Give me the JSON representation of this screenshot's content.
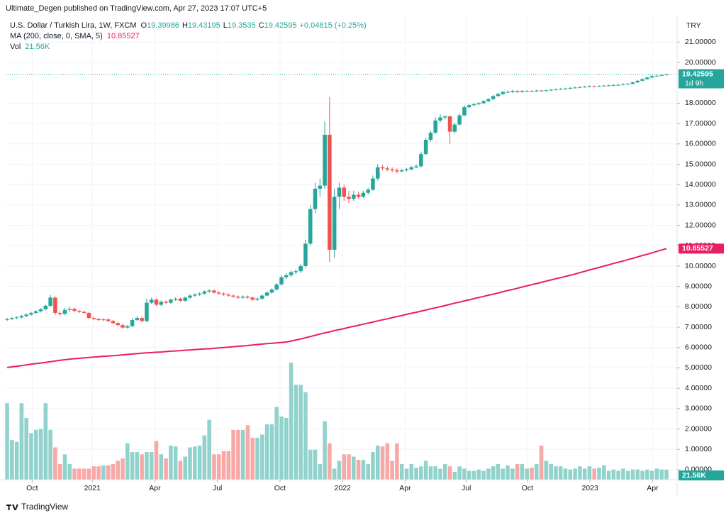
{
  "chart_data": {
    "type": "candlestick",
    "published": "Ultimate_Degen published on TradingView.com, Apr 27, 2023 17:07 UTC+5",
    "title": "U.S. Dollar / Turkish Lira, 1W, FXCM",
    "ohlc_labels": [
      "O",
      "H",
      "L",
      "C"
    ],
    "change": "+0.04815 (+0.25%)",
    "currency": "TRY",
    "countdown": "1d 9h",
    "brand": "TradingView",
    "up_color": "#26a69a",
    "down_color": "#ef5350",
    "candles": [
      [
        7.36,
        7.46,
        7.3,
        7.4
      ],
      [
        7.4,
        7.51,
        7.34,
        7.45
      ],
      [
        7.45,
        7.54,
        7.39,
        7.48
      ],
      [
        7.48,
        7.61,
        7.42,
        7.55
      ],
      [
        7.55,
        7.68,
        7.49,
        7.62
      ],
      [
        7.62,
        7.76,
        7.56,
        7.7
      ],
      [
        7.7,
        7.84,
        7.64,
        7.78
      ],
      [
        7.78,
        7.94,
        7.72,
        7.88
      ],
      [
        7.88,
        8.11,
        7.82,
        8.05
      ],
      [
        8.05,
        8.58,
        7.99,
        8.45
      ],
      [
        8.45,
        8.51,
        7.6,
        7.7
      ],
      [
        7.7,
        7.8,
        7.55,
        7.65
      ],
      [
        7.65,
        7.95,
        7.59,
        7.85
      ],
      [
        7.85,
        8.0,
        7.75,
        7.9
      ],
      [
        7.9,
        7.96,
        7.74,
        7.8
      ],
      [
        7.8,
        7.86,
        7.69,
        7.75
      ],
      [
        7.75,
        7.81,
        7.64,
        7.7
      ],
      [
        7.7,
        7.76,
        7.39,
        7.45
      ],
      [
        7.45,
        7.51,
        7.34,
        7.4
      ],
      [
        7.4,
        7.46,
        7.29,
        7.35
      ],
      [
        7.35,
        7.44,
        7.29,
        7.38
      ],
      [
        7.38,
        7.44,
        7.24,
        7.3
      ],
      [
        7.3,
        7.36,
        7.14,
        7.2
      ],
      [
        7.2,
        7.26,
        7.04,
        7.1
      ],
      [
        7.1,
        7.16,
        6.92,
        6.98
      ],
      [
        6.98,
        7.11,
        6.92,
        7.05
      ],
      [
        7.05,
        7.45,
        6.99,
        7.35
      ],
      [
        7.35,
        7.55,
        7.29,
        7.45
      ],
      [
        7.45,
        7.51,
        7.24,
        7.3
      ],
      [
        7.3,
        8.4,
        7.24,
        8.2
      ],
      [
        8.2,
        8.45,
        8.14,
        8.35
      ],
      [
        8.35,
        8.41,
        8.04,
        8.1
      ],
      [
        8.1,
        8.31,
        8.04,
        8.25
      ],
      [
        8.25,
        8.31,
        8.14,
        8.2
      ],
      [
        8.2,
        8.41,
        8.14,
        8.35
      ],
      [
        8.35,
        8.46,
        8.29,
        8.4
      ],
      [
        8.4,
        8.46,
        8.24,
        8.3
      ],
      [
        8.3,
        8.51,
        8.24,
        8.45
      ],
      [
        8.45,
        8.61,
        8.39,
        8.55
      ],
      [
        8.55,
        8.66,
        8.49,
        8.6
      ],
      [
        8.6,
        8.71,
        8.54,
        8.65
      ],
      [
        8.65,
        8.81,
        8.59,
        8.75
      ],
      [
        8.75,
        8.86,
        8.69,
        8.8
      ],
      [
        8.8,
        8.86,
        8.64,
        8.7
      ],
      [
        8.7,
        8.76,
        8.59,
        8.65
      ],
      [
        8.65,
        8.71,
        8.54,
        8.6
      ],
      [
        8.6,
        8.66,
        8.49,
        8.55
      ],
      [
        8.55,
        8.61,
        8.44,
        8.5
      ],
      [
        8.5,
        8.56,
        8.39,
        8.45
      ],
      [
        8.45,
        8.56,
        8.39,
        8.5
      ],
      [
        8.5,
        8.56,
        8.39,
        8.45
      ],
      [
        8.45,
        8.51,
        8.29,
        8.35
      ],
      [
        8.35,
        8.46,
        8.29,
        8.4
      ],
      [
        8.4,
        8.61,
        8.34,
        8.55
      ],
      [
        8.55,
        8.76,
        8.49,
        8.7
      ],
      [
        8.7,
        8.91,
        8.64,
        8.85
      ],
      [
        8.85,
        9.16,
        8.79,
        9.1
      ],
      [
        9.1,
        9.55,
        9.04,
        9.45
      ],
      [
        9.45,
        9.65,
        9.35,
        9.55
      ],
      [
        9.55,
        9.8,
        9.45,
        9.7
      ],
      [
        9.7,
        9.85,
        9.6,
        9.75
      ],
      [
        9.75,
        10.1,
        9.65,
        10.0
      ],
      [
        10.0,
        11.3,
        9.9,
        11.1
      ],
      [
        11.1,
        13.0,
        11.0,
        12.8
      ],
      [
        12.8,
        14.1,
        12.6,
        13.8
      ],
      [
        13.8,
        14.3,
        13.4,
        13.95
      ],
      [
        13.95,
        17.1,
        13.8,
        16.45
      ],
      [
        16.45,
        18.3,
        10.2,
        10.8
      ],
      [
        10.8,
        13.8,
        10.4,
        13.4
      ],
      [
        13.4,
        14.1,
        12.8,
        13.85
      ],
      [
        13.85,
        14.0,
        13.2,
        13.4
      ],
      [
        13.4,
        13.7,
        13.1,
        13.3
      ],
      [
        13.3,
        13.7,
        13.2,
        13.5
      ],
      [
        13.5,
        13.65,
        13.3,
        13.4
      ],
      [
        13.4,
        13.7,
        13.35,
        13.6
      ],
      [
        13.6,
        13.85,
        13.5,
        13.75
      ],
      [
        13.75,
        14.45,
        13.7,
        14.3
      ],
      [
        14.3,
        15.0,
        14.2,
        14.85
      ],
      [
        14.85,
        14.95,
        14.7,
        14.8
      ],
      [
        14.8,
        14.9,
        14.65,
        14.75
      ],
      [
        14.75,
        14.85,
        14.6,
        14.7
      ],
      [
        14.7,
        14.8,
        14.55,
        14.65
      ],
      [
        14.65,
        14.78,
        14.6,
        14.7
      ],
      [
        14.7,
        14.82,
        14.65,
        14.75
      ],
      [
        14.75,
        14.92,
        14.7,
        14.85
      ],
      [
        14.85,
        15.0,
        14.8,
        14.9
      ],
      [
        14.9,
        15.6,
        14.85,
        15.5
      ],
      [
        15.5,
        16.3,
        15.45,
        16.2
      ],
      [
        16.2,
        16.65,
        16.1,
        16.55
      ],
      [
        16.55,
        17.3,
        16.5,
        17.15
      ],
      [
        17.15,
        17.45,
        17.05,
        17.3
      ],
      [
        17.3,
        17.4,
        17.2,
        17.35
      ],
      [
        17.35,
        17.4,
        16.0,
        16.6
      ],
      [
        16.6,
        17.05,
        16.5,
        16.95
      ],
      [
        16.95,
        17.5,
        16.9,
        17.4
      ],
      [
        17.4,
        17.9,
        17.35,
        17.8
      ],
      [
        17.8,
        17.98,
        17.75,
        17.9
      ],
      [
        17.9,
        18.02,
        17.85,
        17.95
      ],
      [
        17.95,
        18.06,
        17.9,
        18.0
      ],
      [
        18.0,
        18.15,
        17.95,
        18.1
      ],
      [
        18.1,
        18.25,
        18.05,
        18.2
      ],
      [
        18.2,
        18.4,
        18.15,
        18.35
      ],
      [
        18.35,
        18.5,
        18.3,
        18.45
      ],
      [
        18.45,
        18.6,
        18.4,
        18.55
      ],
      [
        18.55,
        18.62,
        18.5,
        18.55
      ],
      [
        18.55,
        18.65,
        18.5,
        18.6
      ],
      [
        18.6,
        18.64,
        18.5,
        18.55
      ],
      [
        18.55,
        18.65,
        18.52,
        18.6
      ],
      [
        18.6,
        18.64,
        18.55,
        18.6
      ],
      [
        18.6,
        18.63,
        18.54,
        18.58
      ],
      [
        18.58,
        18.66,
        18.55,
        18.62
      ],
      [
        18.62,
        18.65,
        18.56,
        18.6
      ],
      [
        18.6,
        18.67,
        18.57,
        18.63
      ],
      [
        18.63,
        18.7,
        18.6,
        18.66
      ],
      [
        18.66,
        18.72,
        18.63,
        18.68
      ],
      [
        18.68,
        18.74,
        18.65,
        18.7
      ],
      [
        18.7,
        18.76,
        18.67,
        18.72
      ],
      [
        18.72,
        18.79,
        18.69,
        18.75
      ],
      [
        18.75,
        18.81,
        18.72,
        18.77
      ],
      [
        18.77,
        18.83,
        18.74,
        18.79
      ],
      [
        18.79,
        18.85,
        18.76,
        18.81
      ],
      [
        18.81,
        18.87,
        18.78,
        18.83
      ],
      [
        18.83,
        18.86,
        18.78,
        18.82
      ],
      [
        18.82,
        18.88,
        18.79,
        18.84
      ],
      [
        18.84,
        18.9,
        18.81,
        18.86
      ],
      [
        18.86,
        18.91,
        18.83,
        18.87
      ],
      [
        18.87,
        18.93,
        18.84,
        18.89
      ],
      [
        18.89,
        18.94,
        18.86,
        18.9
      ],
      [
        18.9,
        18.97,
        18.87,
        18.93
      ],
      [
        18.93,
        18.99,
        18.9,
        18.95
      ],
      [
        18.95,
        19.06,
        18.92,
        19.02
      ],
      [
        19.02,
        19.14,
        18.99,
        19.1
      ],
      [
        19.1,
        19.22,
        19.07,
        19.18
      ],
      [
        19.18,
        19.3,
        19.15,
        19.26
      ],
      [
        19.26,
        19.37,
        19.23,
        19.33
      ],
      [
        19.33,
        19.39,
        19.3,
        19.35
      ],
      [
        19.35,
        19.41,
        19.32,
        19.3778
      ],
      [
        19.39986,
        19.43195,
        19.3535,
        19.42595
      ]
    ],
    "ma": {
      "name": "MA (200, close, 0, SMA, 5)",
      "color": "#e91e63",
      "values": [
        5.02,
        5.05,
        5.08,
        5.11,
        5.15,
        5.18,
        5.21,
        5.24,
        5.27,
        5.3,
        5.34,
        5.37,
        5.4,
        5.43,
        5.45,
        5.47,
        5.49,
        5.51,
        5.53,
        5.55,
        5.57,
        5.58,
        5.6,
        5.62,
        5.64,
        5.66,
        5.68,
        5.7,
        5.72,
        5.74,
        5.75,
        5.77,
        5.78,
        5.8,
        5.82,
        5.83,
        5.85,
        5.87,
        5.88,
        5.9,
        5.91,
        5.93,
        5.94,
        5.96,
        5.98,
        6.0,
        6.02,
        6.04,
        6.06,
        6.08,
        6.1,
        6.12,
        6.15,
        6.17,
        6.19,
        6.21,
        6.23,
        6.25,
        6.27,
        6.32,
        6.37,
        6.42,
        6.48,
        6.54,
        6.6,
        6.66,
        6.72,
        6.77,
        6.83,
        6.88,
        6.93,
        6.99,
        7.04,
        7.09,
        7.15,
        7.2,
        7.25,
        7.31,
        7.36,
        7.41,
        7.47,
        7.52,
        7.57,
        7.63,
        7.68,
        7.73,
        7.79,
        7.84,
        7.9,
        7.95,
        8.01,
        8.06,
        8.12,
        8.18,
        8.23,
        8.29,
        8.34,
        8.4,
        8.46,
        8.51,
        8.57,
        8.62,
        8.68,
        8.74,
        8.8,
        8.85,
        8.91,
        8.97,
        9.03,
        9.09,
        9.14,
        9.2,
        9.26,
        9.32,
        9.38,
        9.43,
        9.49,
        9.55,
        9.61,
        9.68,
        9.74,
        9.81,
        9.87,
        9.93,
        10.0,
        10.06,
        10.13,
        10.19,
        10.25,
        10.32,
        10.38,
        10.45,
        10.52,
        10.58,
        10.65,
        10.72,
        10.79,
        10.85527
      ]
    },
    "volume": {
      "name": "Vol",
      "up_color": "#92d2cc",
      "down_color": "#f7a9a7",
      "last_label": "21.56K",
      "values": [
        166,
        86,
        82,
        166,
        134,
        101,
        108,
        110,
        166,
        108,
        70,
        34,
        55,
        34,
        24,
        24,
        24,
        24,
        29,
        29,
        31,
        31,
        34,
        41,
        46,
        79,
        60,
        60,
        55,
        60,
        60,
        84,
        55,
        46,
        74,
        72,
        41,
        50,
        70,
        72,
        74,
        96,
        130,
        55,
        55,
        62,
        62,
        108,
        108,
        108,
        118,
        91,
        91,
        98,
        120,
        120,
        158,
        137,
        134,
        254,
        206,
        206,
        190,
        65,
        65,
        34,
        127,
        79,
        24,
        41,
        55,
        55,
        50,
        43,
        43,
        34,
        60,
        74,
        72,
        79,
        41,
        79,
        34,
        24,
        34,
        26,
        29,
        41,
        29,
        29,
        24,
        34,
        29,
        17,
        29,
        24,
        19,
        19,
        22,
        19,
        24,
        29,
        34,
        24,
        31,
        24,
        34,
        34,
        24,
        26,
        34,
        74,
        41,
        34,
        29,
        29,
        24,
        22,
        24,
        29,
        24,
        29,
        24,
        26,
        31,
        19,
        22,
        19,
        24,
        19,
        22,
        22,
        19,
        22,
        19,
        24,
        22,
        21.56
      ]
    },
    "xlim": [
      -0.3,
      139.2
    ],
    "xticks": [
      {
        "value": 5.2,
        "label": "Oct"
      },
      {
        "value": 17.7,
        "label": "2021"
      },
      {
        "value": 30.7,
        "label": "Apr"
      },
      {
        "value": 43.7,
        "label": "Jul"
      },
      {
        "value": 56.7,
        "label": "Oct"
      },
      {
        "value": 69.7,
        "label": "2022"
      },
      {
        "value": 82.7,
        "label": "Apr"
      },
      {
        "value": 95.4,
        "label": "Jul"
      },
      {
        "value": 108.1,
        "label": "Oct"
      },
      {
        "value": 121.1,
        "label": "2023"
      },
      {
        "value": 134.1,
        "label": "Apr"
      }
    ],
    "ylim": [
      -0.49,
      22.3
    ],
    "yticks": [
      {
        "value": 0,
        "label": "0.00000"
      },
      {
        "value": 1,
        "label": "1.00000"
      },
      {
        "value": 2,
        "label": "2.00000"
      },
      {
        "value": 3,
        "label": "3.00000"
      },
      {
        "value": 4,
        "label": "4.00000"
      },
      {
        "value": 5,
        "label": "5.00000"
      },
      {
        "value": 6,
        "label": "6.00000"
      },
      {
        "value": 7,
        "label": "7.00000"
      },
      {
        "value": 8,
        "label": "8.00000"
      },
      {
        "value": 9,
        "label": "9.00000"
      },
      {
        "value": 10,
        "label": "10.00000"
      },
      {
        "value": 11,
        "label": "11.00000"
      },
      {
        "value": 12,
        "label": "12.00000"
      },
      {
        "value": 13,
        "label": "13.00000"
      },
      {
        "value": 14,
        "label": "14.00000"
      },
      {
        "value": 15,
        "label": "15.00000"
      },
      {
        "value": 16,
        "label": "16.00000"
      },
      {
        "value": 17,
        "label": "17.00000"
      },
      {
        "value": 18,
        "label": "18.00000"
      },
      {
        "value": 20,
        "label": "20.00000"
      },
      {
        "value": 21,
        "label": "21.00000"
      }
    ],
    "grid": true
  }
}
